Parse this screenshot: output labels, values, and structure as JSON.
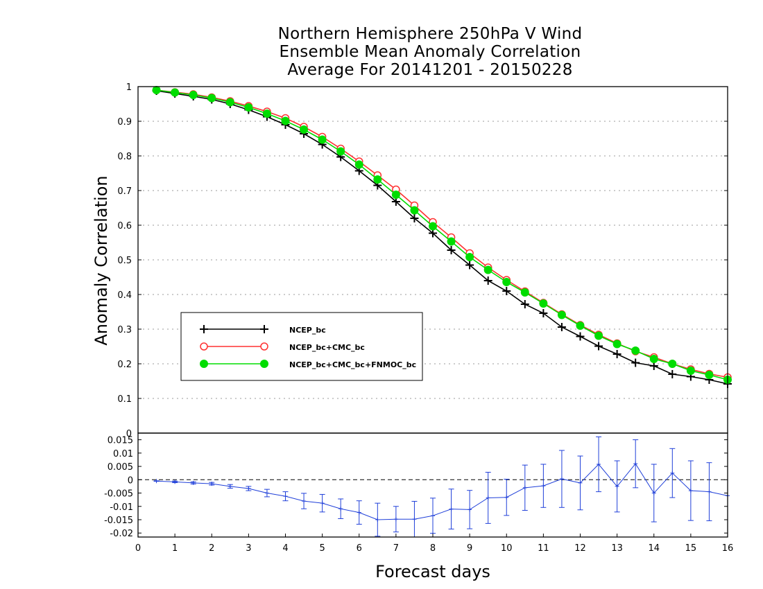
{
  "chart_data": {
    "type": "line",
    "title_lines": [
      "Northern Hemisphere 250hPa V Wind",
      "Ensemble Mean Anomaly Correlation",
      "Average For 20141201 - 20150228"
    ],
    "xlabel": "Forecast days",
    "ylabel": "Anomaly Correlation",
    "xlim": [
      0,
      16
    ],
    "x_ticks": [
      0,
      1,
      2,
      3,
      4,
      5,
      6,
      7,
      8,
      9,
      10,
      11,
      12,
      13,
      14,
      15,
      16
    ],
    "top_panel": {
      "ylim": [
        0,
        1
      ],
      "y_ticks": [
        0,
        0.1,
        0.2,
        0.3,
        0.4,
        0.5,
        0.6,
        0.7,
        0.8,
        0.9,
        1
      ],
      "y_tick_labels": [
        "0",
        "0.1",
        "0.2",
        "0.3",
        "0.4",
        "0.5",
        "0.6",
        "0.7",
        "0.8",
        "0.9",
        "1"
      ],
      "grid": "dotted horizontal",
      "legend_position": "lower-left",
      "x": [
        0.5,
        1,
        1.5,
        2,
        2.5,
        3,
        3.5,
        4,
        4.5,
        5,
        5.5,
        6,
        6.5,
        7,
        7.5,
        8,
        8.5,
        9,
        9.5,
        10,
        10.5,
        11,
        11.5,
        12,
        12.5,
        13,
        13.5,
        14,
        14.5,
        15,
        15.5,
        16
      ],
      "series": [
        {
          "name": "NCEP_bc",
          "color": "#000000",
          "marker": "plus",
          "values": [
            0.988,
            0.98,
            0.972,
            0.963,
            0.95,
            0.933,
            0.913,
            0.89,
            0.864,
            0.833,
            0.797,
            0.757,
            0.715,
            0.668,
            0.62,
            0.577,
            0.528,
            0.485,
            0.44,
            0.41,
            0.372,
            0.346,
            0.306,
            0.279,
            0.251,
            0.228,
            0.203,
            0.194,
            0.17,
            0.163,
            0.154,
            0.142
          ]
        },
        {
          "name": "NCEP_bc+CMC_bc",
          "color": "#ff3030",
          "marker": "open-circle",
          "values": [
            0.99,
            0.984,
            0.978,
            0.969,
            0.958,
            0.944,
            0.928,
            0.909,
            0.884,
            0.855,
            0.821,
            0.784,
            0.744,
            0.703,
            0.657,
            0.609,
            0.565,
            0.519,
            0.478,
            0.442,
            0.409,
            0.376,
            0.343,
            0.312,
            0.284,
            0.259,
            0.236,
            0.219,
            0.2,
            0.184,
            0.171,
            0.161
          ]
        },
        {
          "name": "NCEP_bc+CMC_bc+FNMOC_bc",
          "color": "#00dd00",
          "marker": "filled-circle",
          "values": [
            0.99,
            0.983,
            0.976,
            0.967,
            0.955,
            0.94,
            0.922,
            0.901,
            0.876,
            0.847,
            0.813,
            0.775,
            0.732,
            0.688,
            0.643,
            0.597,
            0.553,
            0.508,
            0.471,
            0.436,
            0.406,
            0.374,
            0.341,
            0.31,
            0.281,
            0.257,
            0.238,
            0.214,
            0.2,
            0.18,
            0.168,
            0.154
          ]
        }
      ]
    },
    "bottom_panel": {
      "description_label": "",
      "ylim": [
        -0.0215,
        0.0175
      ],
      "y_ticks": [
        0.015,
        0.01,
        0.005,
        0,
        -0.005,
        -0.01,
        -0.015,
        -0.02
      ],
      "y_tick_labels": [
        "0.015",
        "0.01",
        "0.005",
        "0",
        "-0.005",
        "-0.01",
        "-0.015",
        "-0.02"
      ],
      "zero_line": "dashed",
      "color": "#1f3fd9",
      "x": [
        0.5,
        1,
        1.5,
        2,
        2.5,
        3,
        3.5,
        4,
        4.5,
        5,
        5.5,
        6,
        6.5,
        7,
        7.5,
        8,
        8.5,
        9,
        9.5,
        10,
        10.5,
        11,
        11.5,
        12,
        12.5,
        13,
        13.5,
        14,
        14.5,
        15,
        15.5,
        16
      ],
      "values": [
        -0.0005,
        -0.0008,
        -0.0012,
        -0.0015,
        -0.0025,
        -0.0033,
        -0.005,
        -0.0062,
        -0.008,
        -0.0088,
        -0.0109,
        -0.0123,
        -0.015,
        -0.0148,
        -0.0148,
        -0.0135,
        -0.011,
        -0.0112,
        -0.0068,
        -0.0066,
        -0.003,
        -0.0023,
        0.0003,
        -0.0012,
        0.0058,
        -0.0025,
        0.006,
        -0.005,
        0.0025,
        -0.0041,
        -0.0045,
        -0.006
      ],
      "error": [
        0.0001,
        0.0003,
        0.0004,
        0.0005,
        0.0007,
        0.0008,
        0.0014,
        0.0017,
        0.0029,
        0.0033,
        0.0037,
        0.0044,
        0.0062,
        0.0048,
        0.0067,
        0.0066,
        0.0075,
        0.0072,
        0.0096,
        0.0068,
        0.0085,
        0.0081,
        0.0107,
        0.0101,
        0.0103,
        0.0096,
        0.009,
        0.0108,
        0.0092,
        0.0112,
        0.0109,
        0
      ]
    },
    "legend": [
      {
        "label": "NCEP_bc",
        "color": "#000000",
        "marker": "plus"
      },
      {
        "label": "NCEP_bc+CMC_bc",
        "color": "#ff3030",
        "marker": "open-circle"
      },
      {
        "label": "NCEP_bc+CMC_bc+FNMOC_bc",
        "color": "#00dd00",
        "marker": "filled-circle"
      }
    ]
  }
}
